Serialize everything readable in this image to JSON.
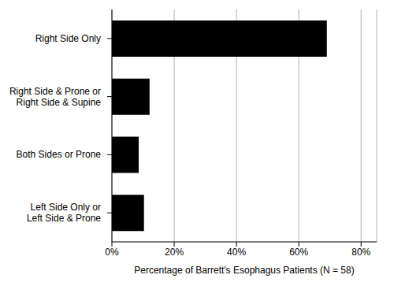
{
  "chart_data": {
    "type": "bar",
    "orientation": "horizontal",
    "categories": [
      "Right Side Only",
      "Right Side & Prone or\nRight Side & Supine",
      "Both Sides or Prone",
      "Left Side Only or\nLeft Side & Prone"
    ],
    "values": [
      69.0,
      12.1,
      8.6,
      10.3
    ],
    "color": "#000000",
    "x_label": "Percentage of Barrett's Esophagus Patients (N = 58)",
    "xlim": [
      0,
      85
    ],
    "xticks": [
      {
        "value": 0,
        "label": "0%"
      },
      {
        "value": 20,
        "label": "20%"
      },
      {
        "value": 40,
        "label": "40%"
      },
      {
        "value": 60,
        "label": "60%"
      },
      {
        "value": 80,
        "label": "80%"
      }
    ],
    "grid": true
  }
}
